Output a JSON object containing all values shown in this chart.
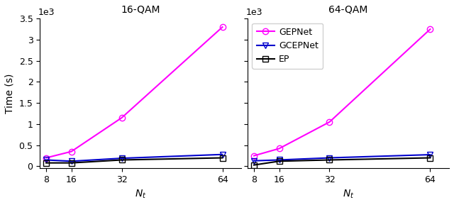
{
  "x": [
    8,
    16,
    32,
    64
  ],
  "plots": [
    {
      "title": "16-QAM",
      "GEPNet": [
        0.2,
        0.35,
        1.15,
        3.3
      ],
      "GCEPNet": [
        0.15,
        0.12,
        0.19,
        0.28
      ],
      "EP": [
        0.08,
        0.08,
        0.15,
        0.2
      ]
    },
    {
      "title": "64-QAM",
      "GEPNet": [
        0.25,
        0.42,
        1.05,
        3.25
      ],
      "GCEPNet": [
        0.13,
        0.15,
        0.2,
        0.275
      ],
      "EP": [
        0.03,
        0.12,
        0.15,
        0.2
      ]
    }
  ],
  "GEPNet_color": "#ff00ff",
  "GCEPNet_color": "#0000cc",
  "EP_color": "#000000",
  "ylabel": "Time (s)",
  "xlabel": "$N_t$",
  "ylim": [
    -0.05,
    3.5
  ],
  "yticks": [
    0.0,
    0.5,
    1.0,
    1.5,
    2.0,
    2.5,
    3.0,
    3.5
  ],
  "ytick_labels": [
    "0",
    "0.5",
    "1",
    "1.5",
    "2",
    "2.5",
    "3",
    "3.5"
  ],
  "scale_label": "1e3",
  "xlim": [
    6,
    70
  ]
}
